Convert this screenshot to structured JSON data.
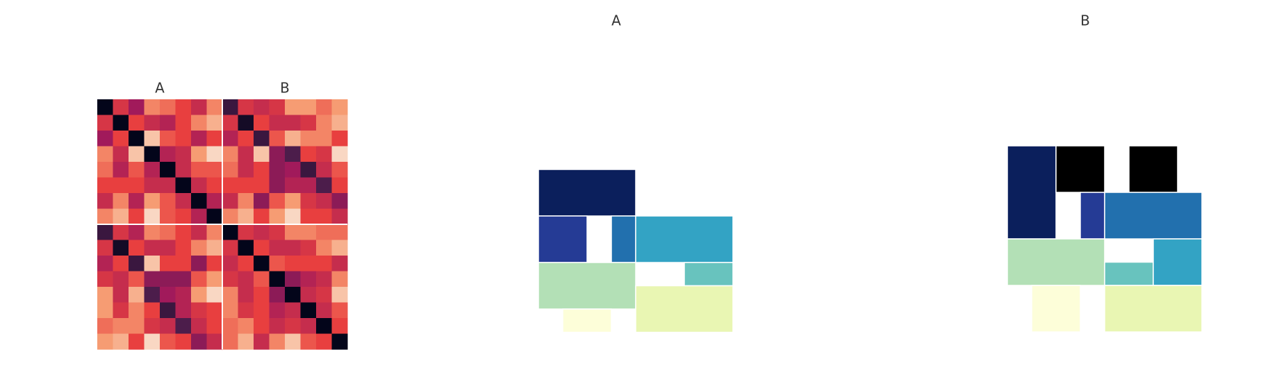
{
  "chart_data": [
    {
      "type": "heatmap",
      "xlabels": [
        "A",
        "B"
      ],
      "colormap": [
        "#03051a",
        "#4c1d4b",
        "#a11a5b",
        "#e83f3f",
        "#f69c73",
        "#faebdd"
      ],
      "values": [
        [
          0.0,
          0.55,
          0.4,
          0.75,
          0.7,
          0.6,
          0.5,
          0.75,
          0.15,
          0.55,
          0.5,
          0.55,
          0.8,
          0.8,
          0.7,
          0.8
        ],
        [
          0.55,
          0.0,
          0.6,
          0.5,
          0.45,
          0.6,
          0.75,
          0.85,
          0.55,
          0.05,
          0.6,
          0.5,
          0.5,
          0.55,
          0.75,
          0.85
        ],
        [
          0.4,
          0.6,
          0.0,
          0.9,
          0.65,
          0.6,
          0.45,
          0.6,
          0.45,
          0.6,
          0.15,
          0.65,
          0.85,
          0.75,
          0.75,
          0.6
        ],
        [
          0.75,
          0.5,
          0.9,
          0.0,
          0.45,
          0.5,
          0.8,
          0.95,
          0.75,
          0.5,
          0.9,
          0.35,
          0.2,
          0.6,
          0.55,
          0.95
        ],
        [
          0.7,
          0.45,
          0.65,
          0.45,
          0.0,
          0.5,
          0.65,
          0.65,
          0.7,
          0.5,
          0.6,
          0.35,
          0.4,
          0.15,
          0.5,
          0.65
        ],
        [
          0.6,
          0.6,
          0.6,
          0.5,
          0.5,
          0.0,
          0.5,
          0.6,
          0.6,
          0.6,
          0.6,
          0.35,
          0.45,
          0.45,
          0.2,
          0.6
        ],
        [
          0.5,
          0.75,
          0.45,
          0.8,
          0.65,
          0.5,
          0.0,
          0.45,
          0.5,
          0.75,
          0.35,
          0.65,
          0.8,
          0.55,
          0.5,
          0.35
        ],
        [
          0.75,
          0.85,
          0.6,
          0.95,
          0.65,
          0.6,
          0.45,
          0.0,
          0.75,
          0.85,
          0.6,
          0.8,
          0.95,
          0.6,
          0.6,
          0.5
        ],
        [
          0.15,
          0.55,
          0.45,
          0.75,
          0.7,
          0.6,
          0.5,
          0.75,
          0.0,
          0.55,
          0.5,
          0.55,
          0.75,
          0.75,
          0.7,
          0.7
        ],
        [
          0.55,
          0.05,
          0.6,
          0.5,
          0.5,
          0.6,
          0.75,
          0.85,
          0.55,
          0.0,
          0.6,
          0.5,
          0.5,
          0.55,
          0.75,
          0.85
        ],
        [
          0.45,
          0.6,
          0.15,
          0.9,
          0.6,
          0.6,
          0.35,
          0.6,
          0.5,
          0.6,
          0.0,
          0.65,
          0.6,
          0.6,
          0.6,
          0.5
        ],
        [
          0.55,
          0.5,
          0.65,
          0.35,
          0.35,
          0.35,
          0.65,
          0.8,
          0.55,
          0.5,
          0.65,
          0.0,
          0.35,
          0.45,
          0.5,
          0.75
        ],
        [
          0.8,
          0.5,
          0.85,
          0.2,
          0.4,
          0.45,
          0.8,
          0.95,
          0.75,
          0.5,
          0.6,
          0.35,
          0.0,
          0.5,
          0.55,
          0.9
        ],
        [
          0.8,
          0.55,
          0.75,
          0.6,
          0.15,
          0.45,
          0.55,
          0.6,
          0.75,
          0.55,
          0.6,
          0.45,
          0.5,
          0.0,
          0.5,
          0.65
        ],
        [
          0.7,
          0.75,
          0.75,
          0.55,
          0.5,
          0.2,
          0.5,
          0.6,
          0.7,
          0.75,
          0.6,
          0.5,
          0.55,
          0.5,
          0.0,
          0.6
        ],
        [
          0.8,
          0.85,
          0.6,
          0.95,
          0.65,
          0.6,
          0.35,
          0.5,
          0.7,
          0.85,
          0.5,
          0.75,
          0.9,
          0.65,
          0.6,
          0.0
        ]
      ]
    },
    {
      "type": "tiles",
      "title": "A",
      "tiles": [
        {
          "x": 0,
          "y": 0,
          "w": 2,
          "h": 1,
          "color": "#0b1f5c"
        },
        {
          "x": 0,
          "y": 1,
          "w": 1,
          "h": 1,
          "color": "#253b95"
        },
        {
          "x": 1.5,
          "y": 1,
          "w": 0.5,
          "h": 1,
          "color": "#2270ae"
        },
        {
          "x": 2,
          "y": 1,
          "w": 2,
          "h": 1,
          "color": "#33a3c4"
        },
        {
          "x": 0,
          "y": 2,
          "w": 2,
          "h": 1,
          "color": "#b3e0b6"
        },
        {
          "x": 3,
          "y": 2,
          "w": 1,
          "h": 0.5,
          "color": "#68c3be"
        },
        {
          "x": 2,
          "y": 2.5,
          "w": 2,
          "h": 1,
          "color": "#e9f6b3"
        },
        {
          "x": 0.5,
          "y": 3,
          "w": 1,
          "h": 0.5,
          "color": "#fdfed9"
        }
      ]
    },
    {
      "type": "tiles",
      "title": "B",
      "tiles": [
        {
          "x": 0,
          "y": 0,
          "w": 1,
          "h": 2,
          "color": "#0b1f5c"
        },
        {
          "x": 1,
          "y": 0,
          "w": 1,
          "h": 1,
          "color": "#000000"
        },
        {
          "x": 2.5,
          "y": 0,
          "w": 1,
          "h": 1,
          "color": "#000000"
        },
        {
          "x": 1.5,
          "y": 1,
          "w": 0.5,
          "h": 1,
          "color": "#253b95"
        },
        {
          "x": 2,
          "y": 1,
          "w": 2,
          "h": 1,
          "color": "#2270ae"
        },
        {
          "x": 0,
          "y": 2,
          "w": 2,
          "h": 1,
          "color": "#b3e0b6"
        },
        {
          "x": 2,
          "y": 2.5,
          "w": 1,
          "h": 0.5,
          "color": "#68c3be"
        },
        {
          "x": 3,
          "y": 2,
          "w": 1,
          "h": 1,
          "color": "#33a3c4"
        },
        {
          "x": 0.5,
          "y": 3,
          "w": 1,
          "h": 1,
          "color": "#fdfed9"
        },
        {
          "x": 2,
          "y": 3,
          "w": 2,
          "h": 1,
          "color": "#e9f6b3"
        }
      ]
    }
  ]
}
